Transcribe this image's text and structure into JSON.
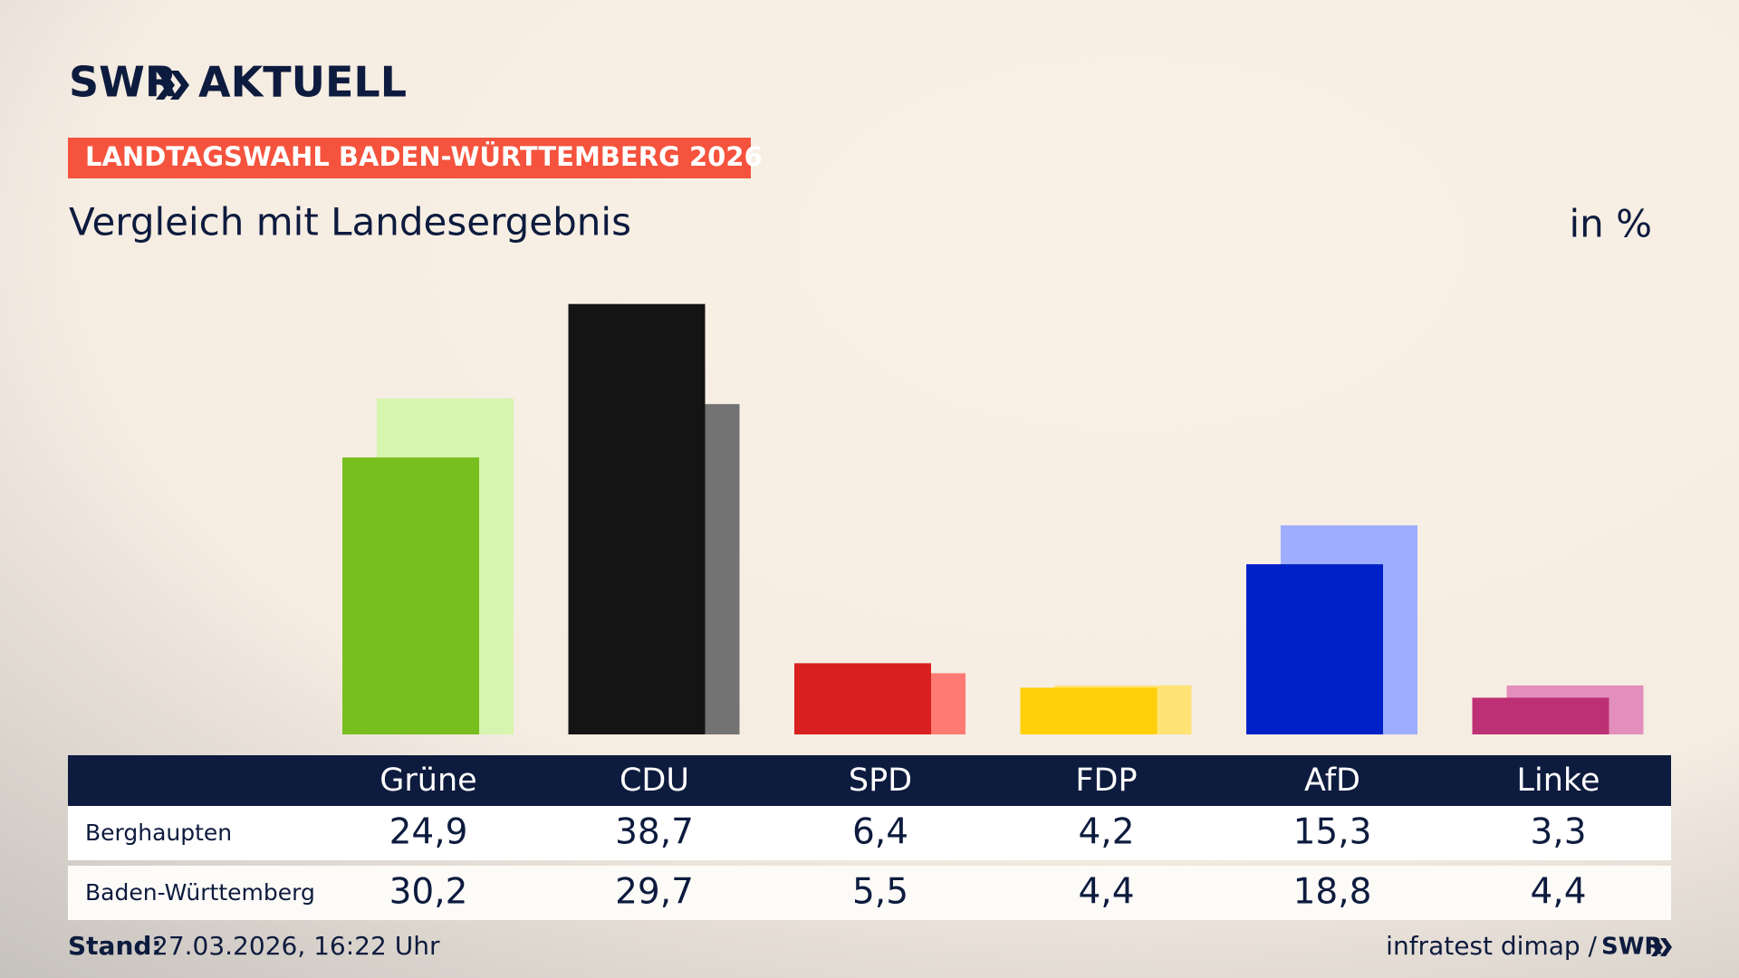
{
  "brand": {
    "name": "SWR",
    "product": "AKTUELL"
  },
  "banner": "LANDTAGSWAHL BADEN-WÜRTTEMBERG 2026",
  "footer": {
    "stand_label": "Stand:",
    "stand": "27.03.2026, 16:22 Uhr",
    "source": "infratest dimap /",
    "source_brand": "SWR"
  },
  "chart_data": {
    "type": "bar",
    "title": "Vergleich mit Landesergebnis",
    "unit_label": "in %",
    "categories": [
      "Grüne",
      "CDU",
      "SPD",
      "FDP",
      "AfD",
      "Linke"
    ],
    "series": [
      {
        "name": "Berghaupten",
        "colors": [
          "#78be1e",
          "#141414",
          "#d7201f",
          "#ffcf0a",
          "#0021c8",
          "#be3075"
        ],
        "values": [
          24.9,
          38.7,
          6.4,
          4.2,
          15.3,
          3.3
        ],
        "value_labels": [
          "24,9",
          "38,7",
          "6,4",
          "4,2",
          "15,3",
          "3,3"
        ]
      },
      {
        "name": "Baden-Württemberg",
        "colors": [
          "#d6f5ae",
          "#737373",
          "#ff7a72",
          "#ffe375",
          "#9fadff",
          "#e38fbd"
        ],
        "values": [
          30.2,
          29.7,
          5.5,
          4.4,
          18.8,
          4.4
        ],
        "value_labels": [
          "30,2",
          "29,7",
          "5,5",
          "4,4",
          "18,8",
          "4,4"
        ]
      }
    ]
  }
}
